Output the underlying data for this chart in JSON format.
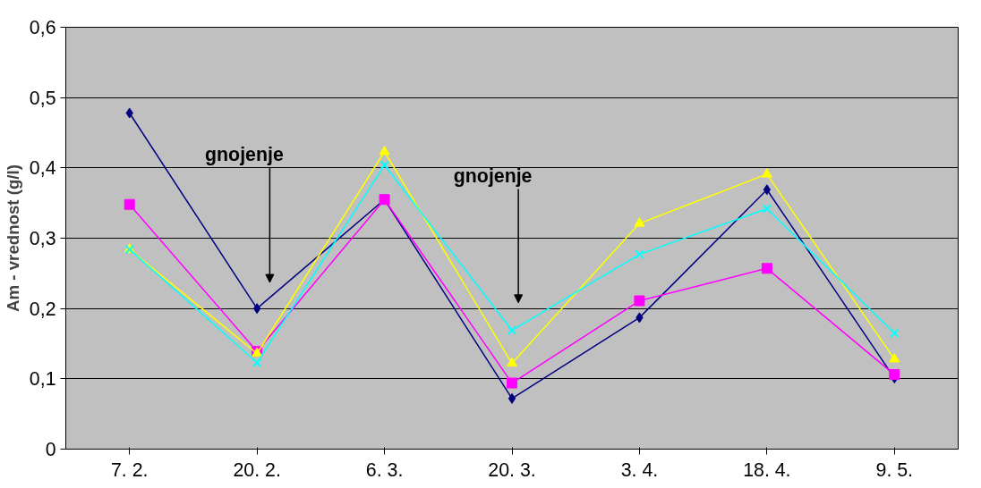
{
  "chart_data": {
    "type": "line",
    "ylabel": "Am - vrednost (g/l)",
    "categories": [
      "7. 2.",
      "20. 2.",
      "6. 3.",
      "20. 3.",
      "3. 4.",
      "18. 4.",
      "9. 5."
    ],
    "series": [
      {
        "color": "#000080",
        "marker": "diamond",
        "values": [
          0.478,
          0.2,
          0.355,
          0.072,
          0.187,
          0.369,
          0.101
        ]
      },
      {
        "color": "#ff00ff",
        "marker": "square",
        "values": [
          0.348,
          0.139,
          0.355,
          0.094,
          0.211,
          0.257,
          0.106
        ]
      },
      {
        "color": "#ffff00",
        "marker": "triangle",
        "values": [
          0.284,
          0.136,
          0.423,
          0.122,
          0.321,
          0.391,
          0.128
        ]
      },
      {
        "color": "#00ffff",
        "marker": "cross",
        "values": [
          0.284,
          0.123,
          0.404,
          0.169,
          0.277,
          0.342,
          0.165
        ]
      }
    ],
    "ylim": [
      0,
      0.6
    ],
    "yticks": [
      0,
      {
        "value": 0.1,
        "label": "0,1"
      },
      {
        "value": 0.2,
        "label": "0,2"
      },
      {
        "value": 0.3,
        "label": "0,3"
      },
      {
        "value": 0.4,
        "label": "0,4"
      },
      {
        "value": 0.5,
        "label": "0,5"
      },
      {
        "value": 0.6,
        "label": "0,6"
      }
    ],
    "grid": "y",
    "line_style": "solid",
    "annotations": [
      "gnojenje",
      "gnojenje"
    ]
  }
}
